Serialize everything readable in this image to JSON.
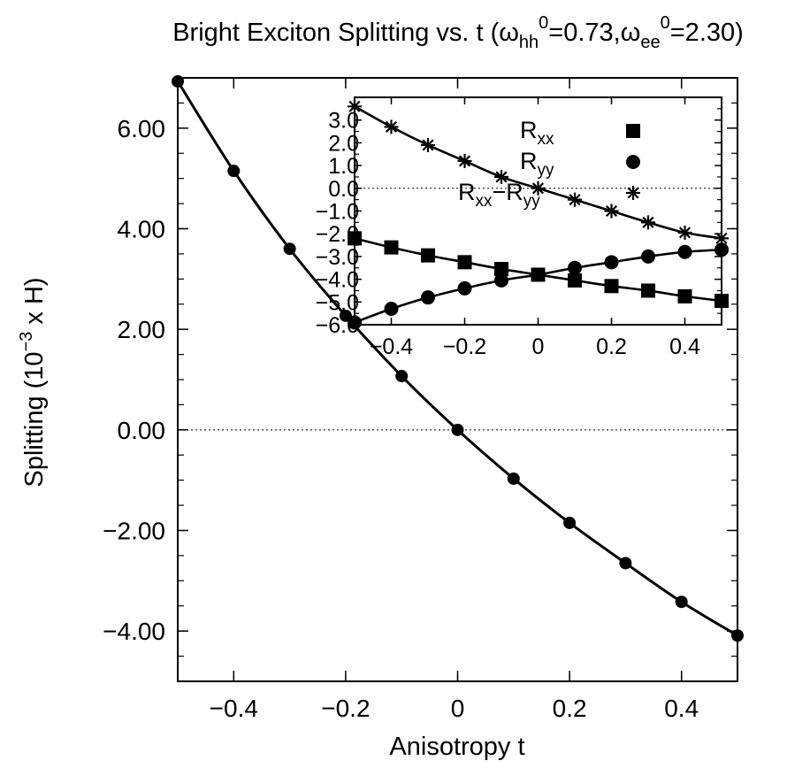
{
  "chart_data": [
    {
      "type": "line",
      "title_main": "Bright Exciton Splitting vs. t (ω",
      "title_sub1": "hh",
      "title_sup1": "0",
      "title_mid": "=0.73,ω",
      "title_sub2": "ee",
      "title_sup2": "0",
      "title_end": "=2.30)",
      "xlabel": "Anisotropy t",
      "ylabel_a": "Splitting (10",
      "ylabel_sup": "−3",
      "ylabel_b": " x H)",
      "xlim": [
        -0.5,
        0.5
      ],
      "ylim": [
        -5.0,
        7.0
      ],
      "xticks": [
        -0.4,
        -0.2,
        0,
        0.2,
        0.4
      ],
      "xtick_labels": [
        "−0.4",
        "−0.2",
        "0",
        "0.2",
        "0.4"
      ],
      "yticks": [
        6.0,
        4.0,
        2.0,
        0.0,
        -2.0,
        -4.0
      ],
      "ytick_labels": [
        "6.00",
        "4.00",
        "2.00",
        "0.00",
        "−2.00",
        "−4.00"
      ],
      "zero_line": true,
      "series": [
        {
          "marker": "circle",
          "x": [
            -0.5,
            -0.4,
            -0.3,
            -0.2,
            -0.1,
            0.0,
            0.1,
            0.2,
            0.3,
            0.4,
            0.5
          ],
          "values": [
            6.93,
            5.15,
            3.6,
            2.27,
            1.07,
            0.0,
            -0.97,
            -1.85,
            -2.65,
            -3.42,
            -4.09
          ]
        }
      ]
    },
    {
      "type": "line",
      "inset": true,
      "xlim": [
        -0.5,
        0.5
      ],
      "ylim": [
        -6.0,
        4.0
      ],
      "xticks": [
        -0.4,
        -0.2,
        0,
        0.2,
        0.4
      ],
      "xtick_labels": [
        "−0.4",
        "−0.2",
        "0",
        "0.2",
        "0.4"
      ],
      "yticks": [
        3.0,
        2.0,
        1.0,
        0.0,
        -1.0,
        -2.0,
        -3.0,
        -4.0,
        -5.0,
        -6.0
      ],
      "ytick_labels": [
        "3.0",
        "2.0",
        "1.0",
        "0.0",
        "−1.0",
        "−2.0",
        "−3.0",
        "−4.0",
        "−5.0",
        "−6.0"
      ],
      "zero_line": true,
      "legend": [
        {
          "base": "R",
          "sub": "xx",
          "mid": "",
          "base2": "",
          "sub2": "",
          "marker": "square"
        },
        {
          "base": "R",
          "sub": "yy",
          "mid": "",
          "base2": "",
          "sub2": "",
          "marker": "circle"
        },
        {
          "base": "R",
          "sub": "xx",
          "mid": "−",
          "base2": "R",
          "sub2": "yy",
          "marker": "star"
        }
      ],
      "series": [
        {
          "marker": "square",
          "x": [
            -0.5,
            -0.4,
            -0.3,
            -0.2,
            -0.1,
            0.0,
            0.1,
            0.2,
            0.3,
            0.4,
            0.5
          ],
          "values": [
            -2.2,
            -2.6,
            -2.95,
            -3.25,
            -3.55,
            -3.8,
            -4.05,
            -4.3,
            -4.5,
            -4.75,
            -4.95
          ]
        },
        {
          "marker": "circle",
          "x": [
            -0.5,
            -0.4,
            -0.3,
            -0.2,
            -0.1,
            0.0,
            0.1,
            0.2,
            0.3,
            0.4,
            0.5
          ],
          "values": [
            -5.9,
            -5.3,
            -4.8,
            -4.4,
            -4.05,
            -3.8,
            -3.5,
            -3.25,
            -3.0,
            -2.8,
            -2.7
          ]
        },
        {
          "marker": "star",
          "x": [
            -0.5,
            -0.4,
            -0.3,
            -0.2,
            -0.1,
            0.0,
            0.1,
            0.2,
            0.3,
            0.4,
            0.5
          ],
          "values": [
            3.6,
            2.7,
            1.9,
            1.2,
            0.5,
            0.0,
            -0.5,
            -1.0,
            -1.5,
            -1.95,
            -2.2
          ]
        }
      ]
    }
  ]
}
